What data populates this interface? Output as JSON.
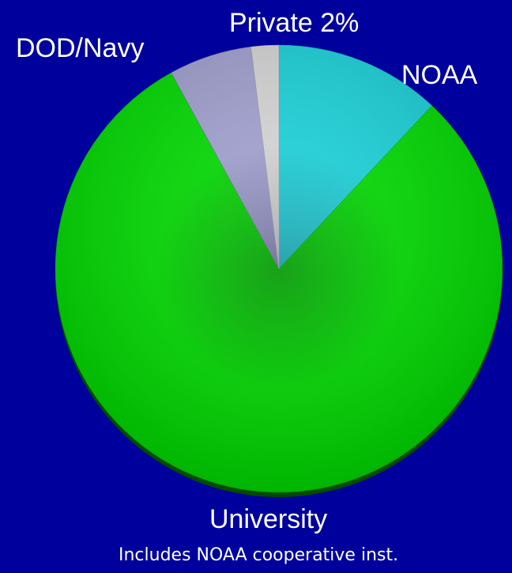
{
  "background_color": "#00009c",
  "chart_data": {
    "type": "pie",
    "slices": [
      {
        "label": "NOAA",
        "value": 12,
        "color": "#1ad4dc",
        "shade": "#169aa6"
      },
      {
        "label": "University",
        "value": 80,
        "color": "#00dd00",
        "shade": "#009a00"
      },
      {
        "label": "DOD/Navy",
        "value": 6,
        "color": "#a2a2d2",
        "shade": "#6a6a96"
      },
      {
        "label": "Private 2%",
        "value": 2,
        "color": "#d8d8d8",
        "shade": "#a0a0a8"
      }
    ],
    "start_angle_deg": 0,
    "direction": "clockwise",
    "labels": {
      "noaa": "NOAA",
      "university": "University",
      "dod": "DOD/Navy",
      "private": "Private 2%"
    },
    "footnote": "Includes NOAA cooperative inst."
  }
}
